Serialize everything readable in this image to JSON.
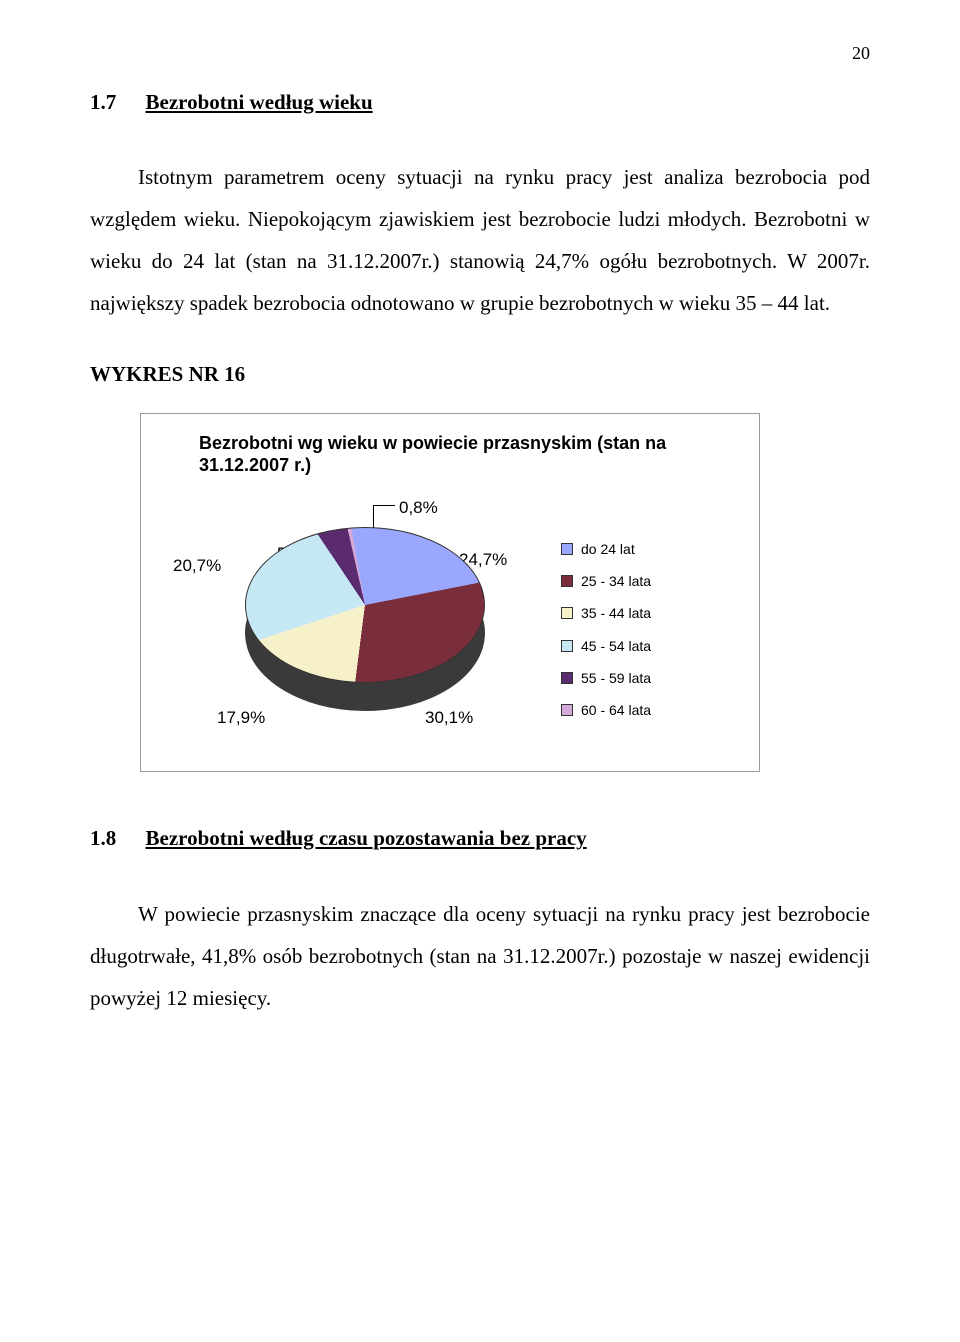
{
  "page_number": "20",
  "section1": {
    "number": "1.7",
    "title": "Bezrobotni według wieku",
    "paragraph": "Istotnym parametrem oceny sytuacji na rynku pracy jest analiza bezrobocia pod względem wieku. Niepokojącym zjawiskiem jest bezrobocie ludzi młodych. Bezrobotni w wieku do 24 lat (stan na 31.12.2007r.) stanowią 24,7% ogółu bezrobotnych. W 2007r. największy spadek bezrobocia odnotowano w grupie bezrobotnych w wieku 35 – 44 lat."
  },
  "wykres_label": "WYKRES NR 16",
  "chart": {
    "type": "pie",
    "title": "Bezrobotni wg wieku w powiecie przasnyskim (stan na 31.12.2007 r.)",
    "background_color": "#ffffff",
    "border_color": "#9a9a9a",
    "title_fontsize": 18,
    "label_fontsize": 17,
    "legend_fontsize": 14,
    "slices": [
      {
        "label": "do 24 lat",
        "value_pct": 24.7,
        "display": "24,7%",
        "color": "#9aa7ff"
      },
      {
        "label": "25 - 34 lata",
        "value_pct": 30.1,
        "display": "30,1%",
        "color": "#7a2d3a"
      },
      {
        "label": "35 - 44 lata",
        "value_pct": 17.9,
        "display": "17,9%",
        "color": "#f6f1c9"
      },
      {
        "label": "45 - 54 lata",
        "value_pct": 20.7,
        "display": "20,7%",
        "color": "#c6e8f5"
      },
      {
        "label": "55 - 59 lata",
        "value_pct": 5.8,
        "display": "5,8%",
        "color": "#5a2b6e"
      },
      {
        "label": "60 - 64 lata",
        "value_pct": 0.8,
        "display": "0,8%",
        "color": "#d4a8d9"
      }
    ],
    "leader_label": "0,8%",
    "start_angle_deg": -10
  },
  "section2": {
    "number": "1.8",
    "title": "Bezrobotni według czasu pozostawania bez pracy",
    "paragraph": "W powiecie przasnyskim znaczące dla oceny sytuacji na rynku pracy jest bezrobocie długotrwałe, 41,8% osób bezrobotnych (stan na 31.12.2007r.) pozostaje w naszej ewidencji powyżej 12 miesięcy."
  }
}
